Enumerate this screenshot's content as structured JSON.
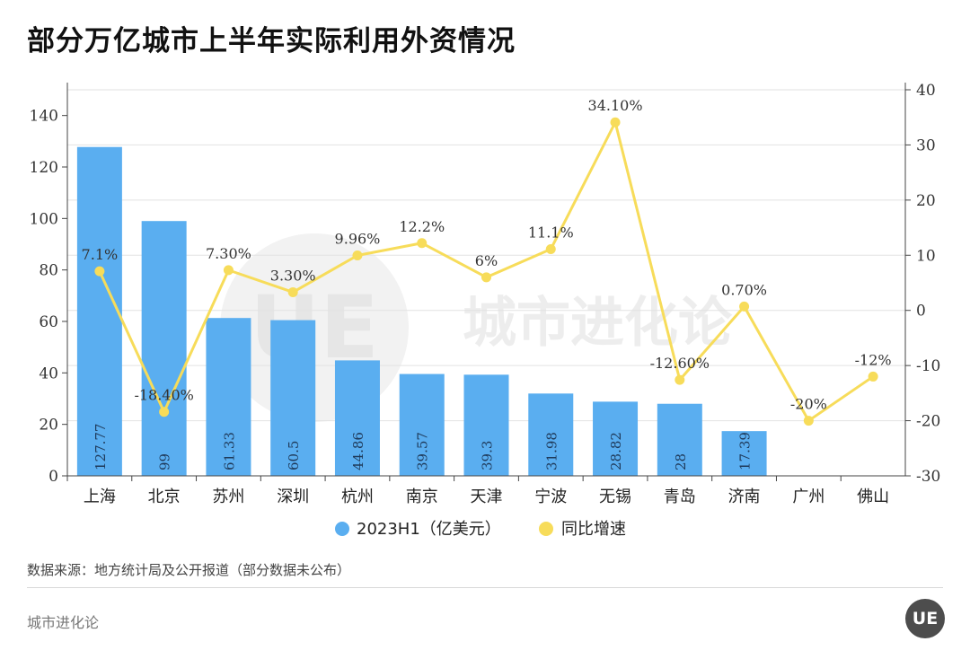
{
  "title": "部分万亿城市上半年实际利用外资情况",
  "source": "数据来源：地方统计局及公开报道（部分数据未公布）",
  "brand": "城市进化论",
  "badge_text": "UE",
  "watermark_text": "城市进化论",
  "colors": {
    "bar": "#5aaef0",
    "line": "#f7dc5a",
    "grid": "#e2e2e2",
    "axis": "#444444"
  },
  "chart_data": {
    "type": "bar",
    "categories": [
      "上海",
      "北京",
      "苏州",
      "深圳",
      "杭州",
      "南京",
      "天津",
      "宁波",
      "无锡",
      "青岛",
      "济南",
      "广州",
      "佛山"
    ],
    "series": [
      {
        "name": "2023H1（亿美元）",
        "axis": "left",
        "kind": "bar",
        "values": [
          127.77,
          99,
          61.33,
          60.5,
          44.86,
          39.57,
          39.3,
          31.98,
          28.82,
          28,
          17.39,
          null,
          null
        ],
        "labels": [
          "127.77",
          "99",
          "61.33",
          "60.5",
          "44.86",
          "39.57",
          "39.3",
          "31.98",
          "28.82",
          "28",
          "17.39",
          "",
          ""
        ]
      },
      {
        "name": "同比增速",
        "axis": "right",
        "kind": "line",
        "values": [
          7.1,
          -18.4,
          7.3,
          3.3,
          9.96,
          12.2,
          6,
          11.1,
          34.1,
          -12.6,
          0.7,
          -20,
          -12
        ],
        "labels": [
          "7.1%",
          "-18.40%",
          "7.30%",
          "3.30%",
          "9.96%",
          "12.2%",
          "6%",
          "11.1%",
          "34.10%",
          "-12.60%",
          "0.70%",
          "-20%",
          "-12%"
        ]
      }
    ],
    "y_left": {
      "min": 0,
      "max": 150,
      "ticks": [
        0,
        20,
        40,
        60,
        80,
        100,
        120,
        140
      ]
    },
    "y_right": {
      "min": -30,
      "max": 40,
      "ticks": [
        -30,
        -20,
        -10,
        0,
        10,
        20,
        30,
        40
      ]
    },
    "legend": [
      "2023H1（亿美元）",
      "同比增速"
    ],
    "legend_position": "bottom",
    "grid": true
  }
}
